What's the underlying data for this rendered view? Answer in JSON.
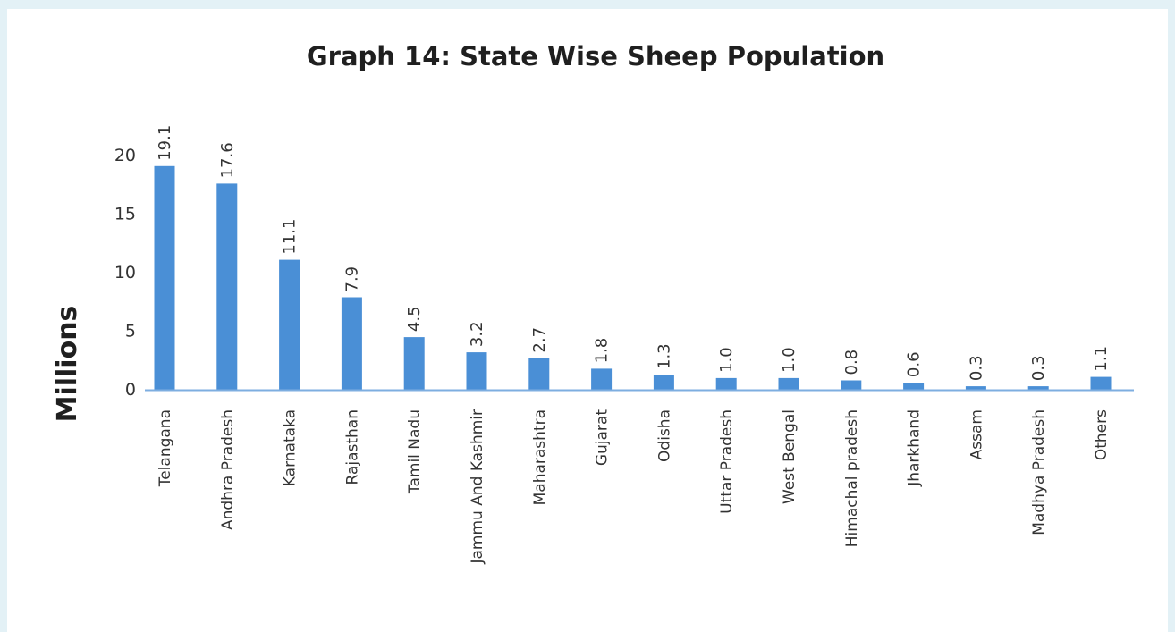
{
  "chart_data": {
    "type": "bar",
    "title": "Graph 14: State Wise Sheep Population",
    "xlabel": "",
    "ylabel": "Millions",
    "ylim": [
      0,
      20
    ],
    "yticks": [
      0,
      5,
      10,
      15,
      20
    ],
    "grid": false,
    "categories": [
      "Telangana",
      "Andhra Pradesh",
      "Karnataka",
      "Rajasthan",
      "Tamil Nadu",
      "Jammu And Kashmir",
      "Maharashtra",
      "Gujarat",
      "Odisha",
      "Uttar Pradesh",
      "West Bengal",
      "Himachal pradesh",
      "Jharkhand",
      "Assam",
      "Madhya Pradesh",
      "Others"
    ],
    "values": [
      19.1,
      17.6,
      11.1,
      7.9,
      4.5,
      3.2,
      2.7,
      1.8,
      1.3,
      1.0,
      1.0,
      0.8,
      0.6,
      0.3,
      0.3,
      1.1
    ],
    "data_labels": [
      "19.1",
      "17.6",
      "11.1",
      "7.9",
      "4.5",
      "3.2",
      "2.7",
      "1.8",
      "1.3",
      "1.0",
      "1.0",
      "0.8",
      "0.6",
      "0.3",
      "0.3",
      "1.1"
    ],
    "colors": {
      "bar": "#4a8fd6",
      "axis": "#7eaee0"
    }
  }
}
